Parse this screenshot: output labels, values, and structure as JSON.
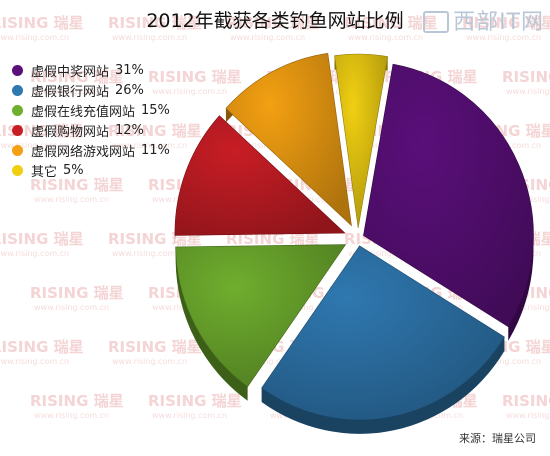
{
  "chart_data": {
    "type": "pie",
    "title": "2012年截获各类钓鱼网站比例",
    "unit": "%",
    "slices": [
      {
        "label": "虚假中奖网站",
        "value": 31,
        "color": "#5a0f7a"
      },
      {
        "label": "虚假银行网站",
        "value": 26,
        "color": "#2f78b0"
      },
      {
        "label": "虚假在线充值网站",
        "value": 15,
        "color": "#6fae2e"
      },
      {
        "label": "虚假购物网站",
        "value": 12,
        "color": "#c81d25"
      },
      {
        "label": "虚假网络游戏网站",
        "value": 11,
        "color": "#f3a012"
      },
      {
        "label": "其它",
        "value": 5,
        "color": "#f0cf12"
      }
    ],
    "legend_position": "top-left"
  },
  "source_text": "来源：瑞星公司",
  "corner_logo_text": "西部IT网",
  "watermark": {
    "brand": "RISING 瑞星",
    "url": "www.rising.com.cn"
  }
}
